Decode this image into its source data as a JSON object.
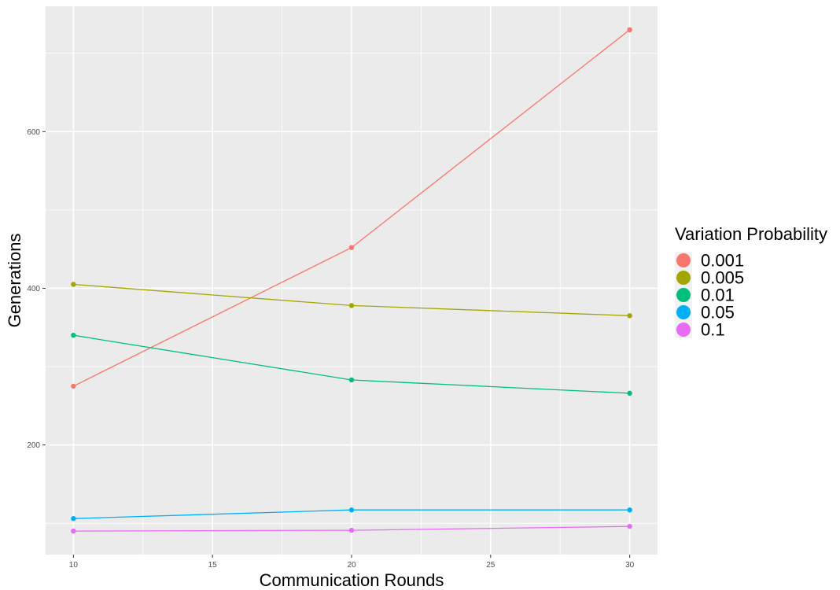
{
  "chart_data": {
    "type": "line",
    "title": "",
    "xlabel": "Communication Rounds",
    "ylabel": "Generations",
    "x": [
      10,
      20,
      30
    ],
    "xlim": [
      9,
      31
    ],
    "ylim": [
      60,
      760
    ],
    "x_ticks": [
      10,
      15,
      20,
      25,
      30
    ],
    "x_tick_labels": [
      "10",
      "15",
      "20",
      "25",
      "30"
    ],
    "y_ticks": [
      200,
      400,
      600
    ],
    "y_tick_labels": [
      "200",
      "400",
      "600"
    ],
    "grid": true,
    "legend": {
      "title": "Variation Probability",
      "placement": "right"
    },
    "series": [
      {
        "name": "0.001",
        "color": "#F8766D",
        "values": [
          275,
          452,
          730
        ]
      },
      {
        "name": "0.005",
        "color": "#A3A500",
        "values": [
          405,
          378,
          365
        ]
      },
      {
        "name": "0.01",
        "color": "#00BF7D",
        "values": [
          340,
          283,
          266
        ]
      },
      {
        "name": "0.05",
        "color": "#00B0F6",
        "values": [
          106,
          117,
          117
        ]
      },
      {
        "name": "0.1",
        "color": "#E76BF3",
        "values": [
          90,
          91,
          96
        ]
      }
    ]
  }
}
